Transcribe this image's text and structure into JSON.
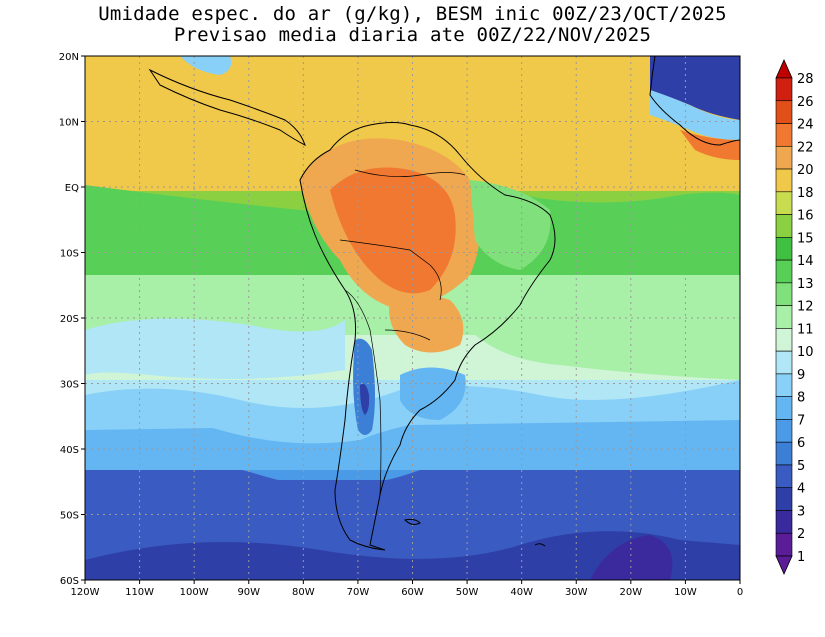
{
  "title": {
    "line1": "Umidade espec. do ar (g/kg), BESM inic 00Z/23/OCT/2025",
    "line2": "Previsao media diaria ate 00Z/22/NOV/2025"
  },
  "map": {
    "projection": "lat-lon",
    "lon_range": [
      -120,
      0
    ],
    "lat_range": [
      -60,
      20
    ],
    "lat_ticks": [
      "20N",
      "10N",
      "EQ",
      "10S",
      "20S",
      "30S",
      "40S",
      "50S",
      "60S"
    ],
    "lon_ticks": [
      "120W",
      "110W",
      "100W",
      "90W",
      "80W",
      "70W",
      "60W",
      "50W",
      "40W",
      "30W",
      "20W",
      "10W",
      "0"
    ],
    "grid": true,
    "field_regions": [
      {
        "name": "amazon-core",
        "level": 22
      },
      {
        "name": "central-brazil",
        "level": 20
      },
      {
        "name": "tropical-atlantic-pacific",
        "level": 18
      },
      {
        "name": "equatorial-band",
        "level": 15
      },
      {
        "name": "subtropics",
        "level": 12
      },
      {
        "name": "mid-latitudes",
        "level": 9
      },
      {
        "name": "southern-ocean",
        "level": 5
      },
      {
        "name": "antarctic-margin",
        "level": 3
      },
      {
        "name": "andes-west",
        "level": 3
      },
      {
        "name": "sahara-nw-africa",
        "level": 3
      }
    ]
  },
  "colorbar": {
    "levels": [
      "1",
      "2",
      "3",
      "4",
      "5",
      "6",
      "7",
      "8",
      "9",
      "10",
      "11",
      "12",
      "13",
      "14",
      "15",
      "16",
      "18",
      "20",
      "22",
      "24",
      "26",
      "28"
    ],
    "colors": [
      "#5a1c97",
      "#3a2a9e",
      "#2f3fa8",
      "#3a5bc2",
      "#3c7fd6",
      "#4b9ae8",
      "#63b6f2",
      "#88d0f8",
      "#b0e6f5",
      "#cff4d6",
      "#a8f0a8",
      "#80e07c",
      "#58d058",
      "#40c040",
      "#8ad040",
      "#c8dc50",
      "#f0c84a",
      "#f0a850",
      "#f07830",
      "#e05018",
      "#d02010",
      "#c00000"
    ]
  }
}
